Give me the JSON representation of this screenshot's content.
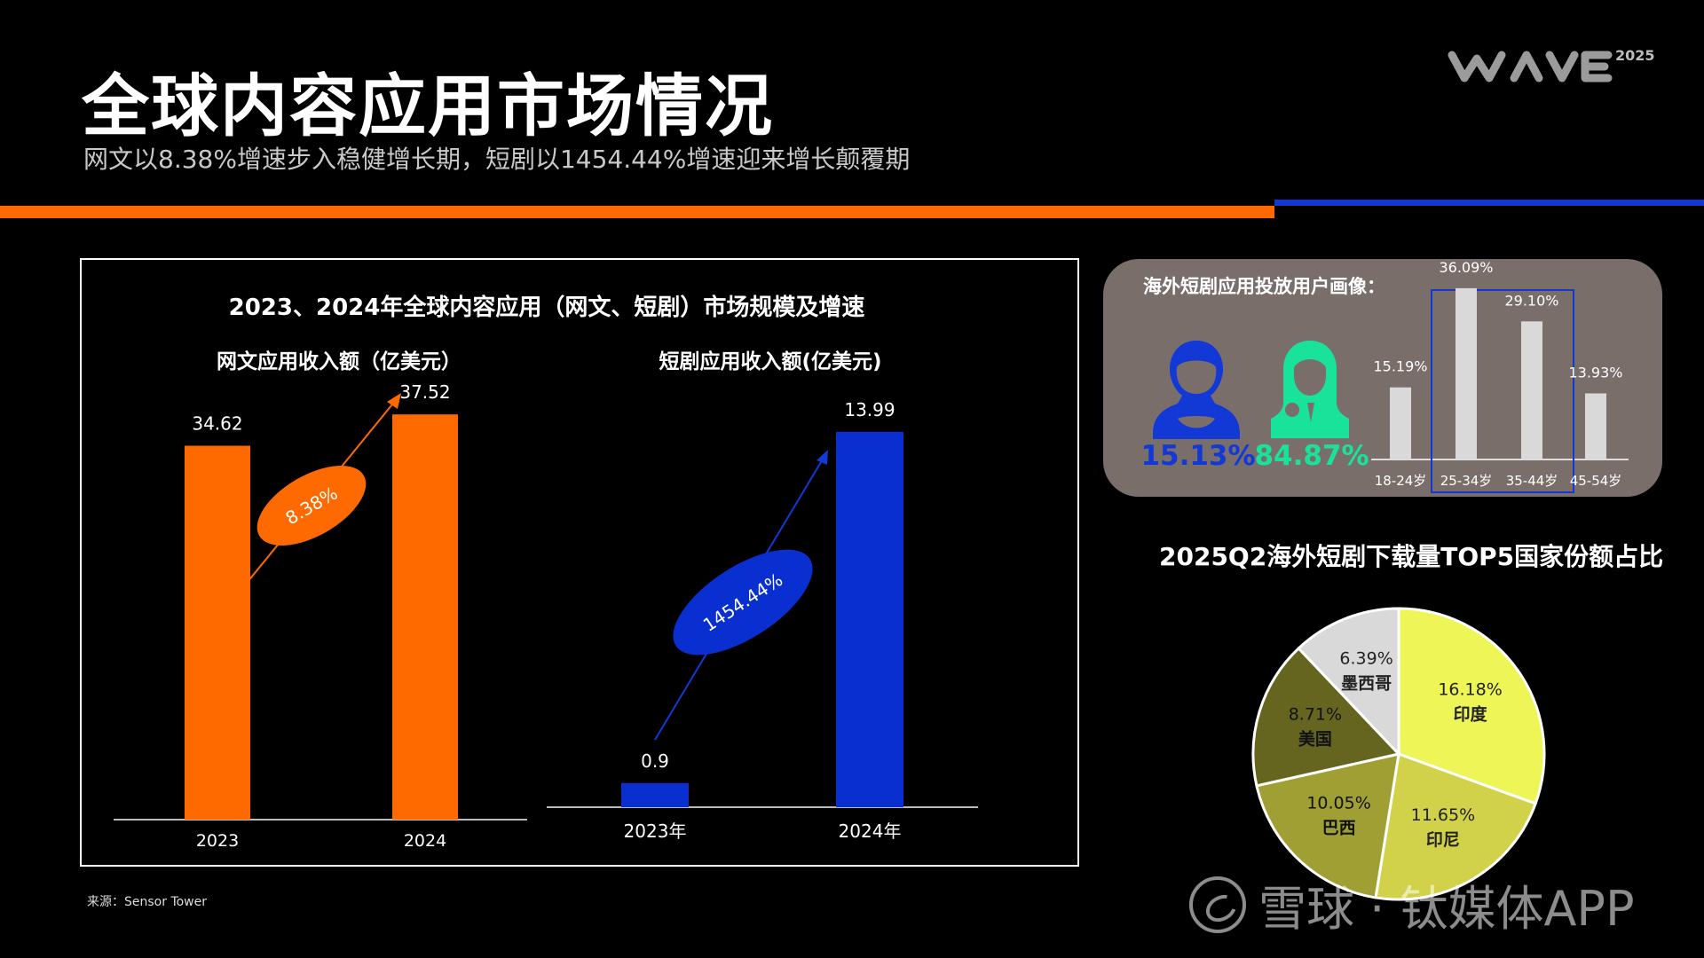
{
  "header": {
    "title": "全球内容应用市场情况",
    "subtitle": "网文以8.38%增速步入稳健增长期，短剧以1454.44%增速迎来增长颠覆期",
    "logo_text": "WAVE",
    "logo_year": "2025",
    "colors": {
      "orange": "#ff6a00",
      "blue": "#1238d6"
    }
  },
  "source_note": "来源：Sensor Tower",
  "watermark": "雪球 · 钛媒体APP",
  "chart_data": [
    {
      "type": "bar",
      "title": "2023、2024年全球内容应用（网文、短剧）市场规模及增速",
      "subtitle": "网文应用收入额（亿美元）",
      "categories": [
        "2023",
        "2024"
      ],
      "values": [
        34.62,
        37.52
      ],
      "value_labels": [
        "34.62",
        "37.52"
      ],
      "growth_label": "8.38%",
      "color": "#ff6a00",
      "ylim": [
        0,
        40
      ]
    },
    {
      "type": "bar",
      "subtitle": "短剧应用收入额(亿美元)",
      "categories": [
        "2023年",
        "2024年"
      ],
      "values": [
        0.9,
        13.99
      ],
      "value_labels": [
        "0.9",
        "13.99"
      ],
      "growth_label": "1454.44%",
      "color": "#0a2fd0",
      "ylim": [
        0,
        16
      ]
    },
    {
      "type": "bar",
      "title": "海外短剧应用投放用户画像：",
      "gender": {
        "male": {
          "value": 15.13,
          "label": "15.13%",
          "color": "#1238d6",
          "icon": "male-user-icon"
        },
        "female": {
          "value": 84.87,
          "label": "84.87%",
          "color": "#19e39b",
          "icon": "female-user-icon"
        }
      },
      "categories": [
        "18-24岁",
        "25-34岁",
        "35-44岁",
        "45-54岁"
      ],
      "values": [
        15.19,
        36.09,
        29.1,
        13.93
      ],
      "value_labels": [
        "15.19%",
        "36.09%",
        "29.10%",
        "13.93%"
      ],
      "highlight": [
        "25-34岁",
        "35-44岁"
      ],
      "ylim": [
        0,
        40
      ]
    },
    {
      "type": "pie",
      "title": "2025Q2海外短剧下载量TOP5国家份额占比",
      "slices": [
        {
          "name": "印度",
          "value": 16.18,
          "label": "16.18%",
          "color": "#eef556"
        },
        {
          "name": "印尼",
          "value": 11.65,
          "label": "11.65%",
          "color": "#d2d24a"
        },
        {
          "name": "巴西",
          "value": 10.05,
          "label": "10.05%",
          "color": "#9f9f34"
        },
        {
          "name": "美国",
          "value": 8.71,
          "label": "8.71%",
          "color": "#65651f"
        },
        {
          "name": "墨西哥",
          "value": 6.39,
          "label": "6.39%",
          "color": "#d9d9d9"
        }
      ]
    }
  ]
}
